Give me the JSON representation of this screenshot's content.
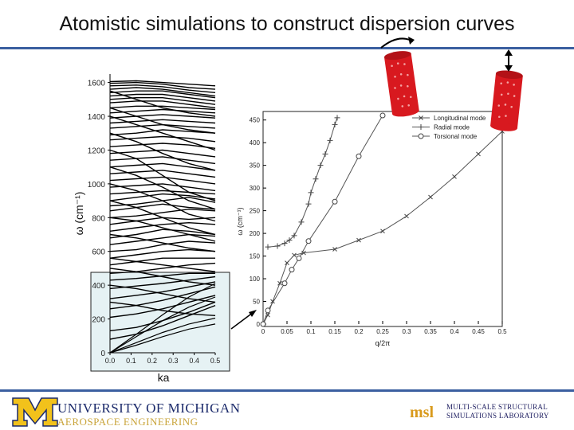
{
  "slide": {
    "title": "Atomistic simulations to construct dispersion curves"
  },
  "colors": {
    "rule": "#3b5fa0",
    "highlight_fill": "#e6f2f4",
    "nanotube": "#d8191f",
    "umich_blue": "#1b2a6b",
    "umich_maize": "#f2c21b",
    "msl_gold": "#d99a1c"
  },
  "icons": [
    "rotation-arrow-icon",
    "vertical-double-arrow-icon",
    "nanotube-icon"
  ],
  "footer": {
    "university": "UNIVERSITY OF MICHIGAN",
    "department": "AEROSPACE ENGINEERING",
    "lab_logo": "msl",
    "lab_name_line1": "MULTI-SCALE STRUCTURAL",
    "lab_name_line2": "SIMULATIONS LABORATORY"
  },
  "chart_data": [
    {
      "type": "line",
      "xlabel": "ka",
      "ylabel": "ω (cm⁻¹)",
      "xlim": [
        0,
        0.5
      ],
      "ylim": [
        0,
        1650
      ],
      "x_ticks": [
        "0.0",
        "0.1",
        "0.2",
        "0.3",
        "0.4",
        "0.5"
      ],
      "y_ticks": [
        "0",
        "200",
        "400",
        "600",
        "800",
        "1000",
        "1200",
        "1400",
        "1600"
      ],
      "highlight_region": {
        "x": [
          0,
          0.5
        ],
        "y": [
          0,
          470
        ]
      },
      "series_count": 60,
      "x": [
        0,
        0.125,
        0.25,
        0.375,
        0.5
      ],
      "series": [
        {
          "values": [
            0,
            110,
            225,
            330,
            410
          ]
        },
        {
          "values": [
            0,
            95,
            190,
            270,
            330
          ]
        },
        {
          "values": [
            0,
            60,
            120,
            170,
            205
          ]
        },
        {
          "values": [
            0,
            45,
            95,
            140,
            170
          ]
        },
        {
          "values": [
            80,
            110,
            160,
            220,
            280
          ]
        },
        {
          "values": [
            130,
            150,
            190,
            240,
            300
          ]
        },
        {
          "values": [
            210,
            230,
            260,
            300,
            340
          ]
        },
        {
          "values": [
            260,
            280,
            310,
            350,
            390
          ]
        },
        {
          "values": [
            320,
            340,
            360,
            390,
            420
          ]
        },
        {
          "values": [
            380,
            395,
            410,
            430,
            450
          ]
        },
        {
          "values": [
            430,
            440,
            455,
            470,
            470
          ]
        },
        {
          "values": [
            470,
            480,
            500,
            520,
            530
          ]
        },
        {
          "values": [
            520,
            540,
            560,
            560,
            560
          ]
        },
        {
          "values": [
            560,
            580,
            600,
            610,
            600
          ]
        },
        {
          "values": [
            600,
            610,
            640,
            660,
            650
          ]
        },
        {
          "values": [
            640,
            660,
            680,
            700,
            690
          ]
        },
        {
          "values": [
            680,
            700,
            730,
            720,
            700
          ]
        },
        {
          "values": [
            720,
            740,
            760,
            770,
            760
          ]
        },
        {
          "values": [
            760,
            780,
            800,
            790,
            800
          ]
        },
        {
          "values": [
            800,
            810,
            830,
            850,
            840
          ]
        },
        {
          "values": [
            840,
            860,
            880,
            860,
            850
          ]
        },
        {
          "values": [
            870,
            880,
            900,
            920,
            890
          ]
        },
        {
          "values": [
            900,
            920,
            940,
            930,
            910
          ]
        },
        {
          "values": [
            940,
            950,
            960,
            950,
            940
          ]
        },
        {
          "values": [
            980,
            990,
            1000,
            980,
            960
          ]
        },
        {
          "values": [
            1020,
            1030,
            1040,
            1020,
            1000
          ]
        },
        {
          "values": [
            1060,
            1070,
            1080,
            1060,
            1040
          ]
        },
        {
          "values": [
            1100,
            1110,
            1120,
            1100,
            1080
          ]
        },
        {
          "values": [
            1140,
            1150,
            1160,
            1140,
            1120
          ]
        },
        {
          "values": [
            1180,
            1190,
            1200,
            1180,
            1160
          ]
        },
        {
          "values": [
            1220,
            1230,
            1240,
            1230,
            1210
          ]
        },
        {
          "values": [
            1260,
            1270,
            1280,
            1270,
            1250
          ]
        },
        {
          "values": [
            1290,
            1300,
            1320,
            1310,
            1300
          ]
        },
        {
          "values": [
            1330,
            1340,
            1350,
            1340,
            1330
          ]
        },
        {
          "values": [
            1360,
            1370,
            1380,
            1370,
            1360
          ]
        },
        {
          "values": [
            1390,
            1400,
            1410,
            1400,
            1390
          ]
        },
        {
          "values": [
            1420,
            1430,
            1440,
            1430,
            1420
          ]
        },
        {
          "values": [
            1450,
            1460,
            1460,
            1450,
            1440
          ]
        },
        {
          "values": [
            1480,
            1490,
            1490,
            1470,
            1450
          ]
        },
        {
          "values": [
            1500,
            1510,
            1510,
            1490,
            1470
          ]
        },
        {
          "values": [
            1520,
            1530,
            1530,
            1510,
            1490
          ]
        },
        {
          "values": [
            1540,
            1550,
            1550,
            1530,
            1510
          ]
        },
        {
          "values": [
            1560,
            1570,
            1560,
            1540,
            1520
          ]
        },
        {
          "values": [
            1580,
            1585,
            1575,
            1555,
            1540
          ]
        },
        {
          "values": [
            1595,
            1600,
            1590,
            1570,
            1560
          ]
        },
        {
          "values": [
            1605,
            1610,
            1600,
            1590,
            1580
          ]
        },
        {
          "values": [
            1200,
            1150,
            1050,
            950,
            900
          ]
        },
        {
          "values": [
            1100,
            1050,
            980,
            900,
            850
          ]
        },
        {
          "values": [
            1000,
            960,
            900,
            820,
            780
          ]
        },
        {
          "values": [
            900,
            860,
            800,
            740,
            700
          ]
        },
        {
          "values": [
            1400,
            1350,
            1300,
            1250,
            1200
          ]
        },
        {
          "values": [
            1300,
            1250,
            1180,
            1120,
            1080
          ]
        },
        {
          "values": [
            800,
            780,
            740,
            700,
            660
          ]
        },
        {
          "values": [
            700,
            680,
            650,
            620,
            600
          ]
        },
        {
          "values": [
            560,
            540,
            520,
            500,
            480
          ]
        },
        {
          "values": [
            500,
            480,
            450,
            420,
            400
          ]
        },
        {
          "values": [
            400,
            380,
            350,
            320,
            300
          ]
        },
        {
          "values": [
            300,
            280,
            250,
            230,
            220
          ]
        },
        {
          "values": [
            1550,
            1500,
            1450,
            1420,
            1400
          ]
        },
        {
          "values": [
            1450,
            1400,
            1350,
            1320,
            1300
          ]
        }
      ]
    },
    {
      "type": "line",
      "xlabel": "q/2π",
      "ylabel": "ω (cm⁻¹)",
      "xlim": [
        0,
        0.5
      ],
      "ylim": [
        0,
        460
      ],
      "x_ticks": [
        "0",
        "0.05",
        "0.1",
        "0.15",
        "0.2",
        "0.25",
        "0.3",
        "0.35",
        "0.4",
        "0.45",
        "0.5"
      ],
      "y_ticks": [
        "0",
        "50",
        "100",
        "150",
        "200",
        "250",
        "300",
        "350",
        "400",
        "450"
      ],
      "legend_position": "top-right",
      "series": [
        {
          "name": "Longitudinal mode",
          "marker": "x",
          "points": [
            [
              0,
              0
            ],
            [
              0.01,
              20
            ],
            [
              0.02,
              50
            ],
            [
              0.035,
              90
            ],
            [
              0.05,
              135
            ],
            [
              0.065,
              152
            ],
            [
              0.085,
              157
            ],
            [
              0.15,
              165
            ],
            [
              0.2,
              185
            ],
            [
              0.25,
              205
            ],
            [
              0.3,
              238
            ],
            [
              0.35,
              280
            ],
            [
              0.4,
              325
            ],
            [
              0.45,
              375
            ],
            [
              0.5,
              425
            ]
          ]
        },
        {
          "name": "Radial mode",
          "marker": "+",
          "points": [
            [
              0.01,
              170
            ],
            [
              0.03,
              172
            ],
            [
              0.045,
              178
            ],
            [
              0.055,
              185
            ],
            [
              0.065,
              195
            ],
            [
              0.08,
              225
            ],
            [
              0.095,
              265
            ],
            [
              0.1,
              290
            ],
            [
              0.11,
              320
            ],
            [
              0.12,
              350
            ],
            [
              0.13,
              375
            ],
            [
              0.14,
              405
            ],
            [
              0.15,
              440
            ],
            [
              0.155,
              455
            ]
          ]
        },
        {
          "name": "Torsional mode",
          "marker": "o",
          "points": [
            [
              0,
              0
            ],
            [
              0.01,
              30
            ],
            [
              0.045,
              90
            ],
            [
              0.06,
              120
            ],
            [
              0.075,
              145
            ],
            [
              0.095,
              183
            ],
            [
              0.15,
              270
            ],
            [
              0.2,
              370
            ],
            [
              0.25,
              460
            ]
          ]
        }
      ]
    }
  ]
}
